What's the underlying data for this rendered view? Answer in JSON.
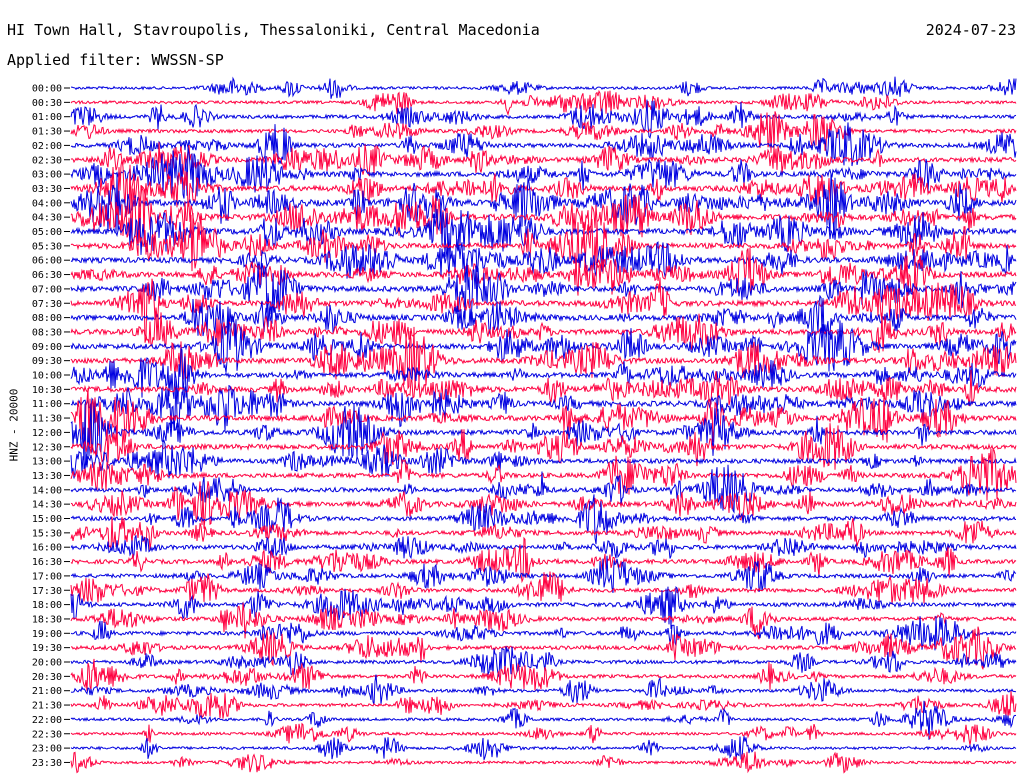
{
  "header": {
    "station": "HI Town Hall, Stavroupolis, Thessaloniki, Central Macedonia",
    "date": "2024-07-23",
    "filter": "Applied filter: WWSSN-SP"
  },
  "chart_data": {
    "type": "line",
    "title": "HI Town Hall, Stavroupolis, Thessaloniki, Central Macedonia",
    "ylabel": "HNZ - 20000",
    "xlabel": "",
    "grid": false,
    "colors": {
      "odd_row": "#0000e0",
      "even_row": "#ff0040"
    },
    "row_labels": [
      "00:00",
      "00:30",
      "01:00",
      "01:30",
      "02:00",
      "02:30",
      "03:00",
      "03:30",
      "04:00",
      "04:30",
      "05:00",
      "05:30",
      "06:00",
      "06:30",
      "07:00",
      "07:30",
      "08:00",
      "08:30",
      "09:00",
      "09:30",
      "10:00",
      "10:30",
      "11:00",
      "11:30",
      "12:00",
      "12:30",
      "13:00",
      "13:30",
      "14:00",
      "14:30",
      "15:00",
      "15:30",
      "16:00",
      "16:30",
      "17:00",
      "17:30",
      "18:00",
      "18:30",
      "19:00",
      "19:30",
      "20:00",
      "20:30",
      "21:00",
      "21:30",
      "22:00",
      "22:30",
      "23:00",
      "23:30"
    ],
    "row_activity": [
      0.3,
      0.35,
      0.5,
      0.5,
      0.7,
      0.8,
      0.9,
      1.0,
      1.2,
      1.2,
      1.2,
      1.0,
      1.0,
      1.0,
      1.0,
      1.0,
      1.0,
      1.0,
      1.0,
      1.0,
      0.9,
      1.0,
      1.0,
      1.0,
      0.9,
      0.9,
      0.8,
      0.8,
      0.7,
      0.8,
      0.7,
      0.7,
      0.7,
      0.7,
      0.6,
      0.6,
      0.6,
      0.6,
      0.6,
      0.6,
      0.5,
      0.5,
      0.4,
      0.4,
      0.3,
      0.3,
      0.3,
      0.25
    ]
  }
}
